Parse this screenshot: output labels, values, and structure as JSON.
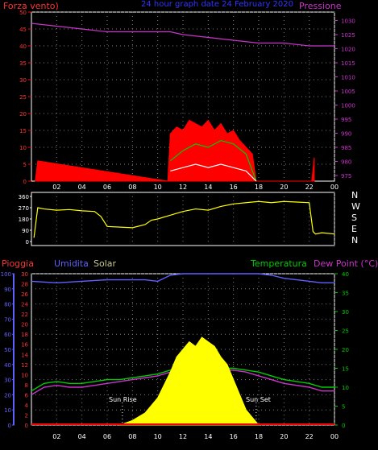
{
  "header": {
    "left": "Forza vento)",
    "center": "24 hour graph date 24 February 2020",
    "right": "Pressione"
  },
  "labels": {
    "pioggia": "Pioggia",
    "umidita": "Umidita",
    "solar": "Solar",
    "temperatura": "Temperatura",
    "dew_point": "Dew Point (°C)",
    "sun_rise": "Sun Rise",
    "sun_set": "Sun Set",
    "compass": [
      "N",
      "W",
      "S",
      "E",
      "N"
    ]
  },
  "colors": {
    "wind_speed": "#ff0000",
    "wind_gust": "#00cc00",
    "wind_avg": "#ffffff",
    "pressure": "#cc33cc",
    "direction": "#ffff00",
    "humidity": "#6060ff",
    "temperature": "#00cc00",
    "dew_point": "#cc33cc",
    "solar": "#ffff00",
    "rain": "#ff0000",
    "axis": "#ffffff",
    "grid": "#808080"
  },
  "chart_data": [
    {
      "type": "line",
      "title": "24 hour graph date 24 February 2020",
      "x_ticks": [
        "02",
        "04",
        "06",
        "08",
        "10",
        "12",
        "14",
        "16",
        "18",
        "20",
        "22",
        "00"
      ],
      "y_left": {
        "label": "Forza vento)",
        "ticks": [
          0,
          5,
          10,
          15,
          20,
          25,
          30,
          35,
          40,
          45,
          50
        ],
        "ylim": [
          0,
          50
        ]
      },
      "y_right": {
        "label": "Pressione",
        "ticks": [
          975,
          980,
          985,
          990,
          995,
          1000,
          1005,
          1010,
          1015,
          1020,
          1025,
          1030
        ],
        "ylim": [
          973,
          1033
        ]
      },
      "series": [
        {
          "name": "Pressione",
          "axis": "right",
          "x": [
            0,
            2,
            4,
            6,
            8,
            10,
            11,
            12,
            14,
            16,
            18,
            20,
            22,
            24
          ],
          "values": [
            1029,
            1028,
            1027,
            1026,
            1026,
            1026,
            1026,
            1025,
            1024,
            1023,
            1022,
            1022,
            1021,
            1021
          ]
        },
        {
          "name": "wind_speed",
          "axis": "left",
          "x": [
            0.3,
            0.5,
            10.8,
            11,
            11.5,
            12,
            12.5,
            13,
            13.5,
            14,
            14.5,
            15,
            15.5,
            16,
            16.5,
            17,
            17.5,
            17.8,
            22.2,
            22.4
          ],
          "values": [
            0,
            6,
            0,
            14,
            16,
            15,
            18,
            17,
            16,
            18,
            15,
            17,
            14,
            15,
            12,
            10,
            8,
            0,
            0,
            7
          ]
        },
        {
          "name": "wind_gust",
          "axis": "left",
          "x": [
            11,
            12,
            13,
            14,
            15,
            16,
            17,
            17.8
          ],
          "values": [
            6,
            9,
            11,
            10,
            12,
            11,
            8,
            0
          ]
        },
        {
          "name": "wind_avg",
          "axis": "left",
          "x": [
            11,
            12,
            13,
            14,
            15,
            16,
            17,
            17.8
          ],
          "values": [
            3,
            4,
            5,
            4,
            5,
            4,
            3,
            0
          ]
        }
      ]
    },
    {
      "type": "line",
      "y_ticks": [
        0,
        90,
        180,
        270,
        360
      ],
      "ylim": [
        0,
        360
      ],
      "series": [
        {
          "name": "direction",
          "x": [
            0.2,
            0.5,
            1,
            2,
            3,
            4,
            5,
            5.5,
            6,
            7,
            8,
            9,
            9.5,
            10,
            11,
            12,
            13,
            14,
            15,
            16,
            17,
            18,
            19,
            20,
            21,
            22,
            22.3,
            22.5,
            23,
            24
          ],
          "values": [
            30,
            270,
            260,
            250,
            255,
            245,
            240,
            200,
            120,
            115,
            110,
            135,
            170,
            180,
            210,
            240,
            260,
            250,
            280,
            300,
            310,
            320,
            310,
            320,
            315,
            310,
            80,
            60,
            70,
            60
          ]
        }
      ]
    },
    {
      "type": "line",
      "x_ticks": [
        "02",
        "04",
        "06",
        "08",
        "10",
        "12",
        "14",
        "16",
        "18",
        "20",
        "22",
        "00"
      ],
      "y_left_pct": {
        "label": "Umidita",
        "ticks": [
          0,
          10,
          20,
          30,
          40,
          50,
          60,
          70,
          80,
          90,
          100
        ],
        "ylim": [
          0,
          100
        ]
      },
      "y_rain": {
        "label": "Pioggia",
        "ticks": [
          0,
          2,
          4,
          6,
          8,
          10,
          12,
          14,
          16,
          18,
          20,
          22,
          24,
          26,
          28,
          30
        ],
        "ylim": [
          0,
          30
        ]
      },
      "y_right": {
        "label": "Dew Point (°C)",
        "ticks": [
          0,
          5,
          10,
          15,
          20,
          25,
          30,
          35,
          40
        ],
        "ylim": [
          0,
          40
        ]
      },
      "series": [
        {
          "name": "Umidita",
          "axis": "pct",
          "x": [
            0,
            2,
            4,
            6,
            8,
            9,
            10,
            11,
            12,
            14,
            16,
            18,
            19,
            20,
            21,
            22,
            23,
            24
          ],
          "values": [
            95,
            94,
            95,
            96,
            96,
            96,
            95,
            99,
            100,
            100,
            100,
            100,
            99,
            97,
            96,
            95,
            94,
            94
          ]
        },
        {
          "name": "Temperatura",
          "axis": "right",
          "x": [
            0,
            1,
            2,
            3,
            4,
            5,
            6,
            7,
            8,
            9,
            10,
            11,
            12,
            13,
            14,
            15,
            16,
            17,
            18,
            19,
            20,
            21,
            22,
            23,
            24
          ],
          "values": [
            9,
            11,
            11.5,
            11,
            11,
            11.5,
            12,
            12,
            12.5,
            13,
            13.5,
            14.5,
            15,
            15,
            15,
            15,
            15,
            14.5,
            14,
            13,
            12,
            11.5,
            11,
            10,
            10
          ]
        },
        {
          "name": "Dew Point (°C)",
          "axis": "right",
          "x": [
            0,
            1,
            2,
            3,
            4,
            5,
            6,
            7,
            8,
            9,
            10,
            11,
            12,
            13,
            14,
            15,
            16,
            17,
            18,
            19,
            20,
            21,
            22,
            23,
            24
          ],
          "values": [
            8,
            10,
            10.5,
            10,
            10,
            10.5,
            11,
            11.5,
            12,
            12.5,
            13,
            14,
            14.5,
            14.5,
            14.5,
            14.5,
            14.5,
            14,
            13,
            12,
            11,
            10.5,
            10,
            9,
            9
          ]
        },
        {
          "name": "Solar",
          "axis": "pct",
          "x": [
            7,
            8,
            9,
            10,
            11,
            11.5,
            12,
            12.5,
            13,
            13.5,
            14,
            14.5,
            15,
            15.5,
            16,
            16.5,
            17,
            18
          ],
          "values": [
            0,
            3,
            8,
            18,
            35,
            45,
            50,
            55,
            52,
            58,
            55,
            52,
            45,
            40,
            30,
            20,
            10,
            0
          ]
        }
      ],
      "annotations": [
        {
          "text": "Sun Rise",
          "x": 7.2
        },
        {
          "text": "Sun Set",
          "x": 17.8
        }
      ]
    }
  ]
}
